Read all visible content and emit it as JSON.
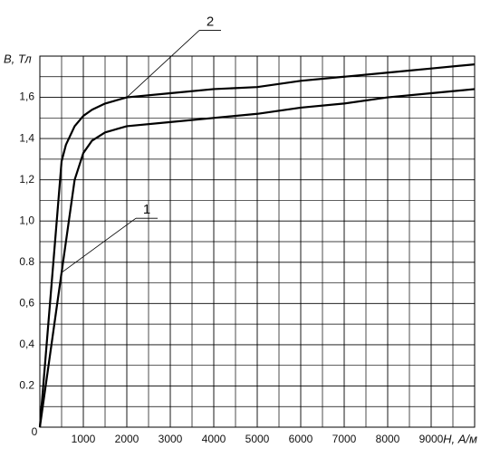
{
  "chart_data": {
    "type": "line",
    "x_label": "H, А/м",
    "y_label": "B, Тл",
    "x": [
      0,
      400,
      500,
      600,
      800,
      1000,
      1200,
      1500,
      2000,
      3000,
      4000,
      5000,
      6000,
      7000,
      8000,
      9000,
      10000
    ],
    "series": [
      {
        "name": "1",
        "color": "#000000",
        "values": [
          0,
          0.6,
          0.75,
          0.9,
          1.2,
          1.33,
          1.39,
          1.43,
          1.46,
          1.48,
          1.5,
          1.52,
          1.55,
          1.57,
          1.6,
          1.62,
          1.64
        ]
      },
      {
        "name": "2",
        "color": "#000000",
        "values": [
          0,
          1.03,
          1.29,
          1.37,
          1.46,
          1.51,
          1.54,
          1.57,
          1.6,
          1.62,
          1.64,
          1.65,
          1.68,
          1.7,
          1.72,
          1.74,
          1.76
        ]
      }
    ],
    "xlim": [
      0,
      10000
    ],
    "ylim": [
      0,
      1.8
    ],
    "xticks": [
      0,
      1000,
      2000,
      3000,
      4000,
      5000,
      6000,
      7000,
      8000,
      9000
    ],
    "yticks": [
      0.2,
      {
        "value": 0.4,
        "label": "0,4"
      },
      {
        "value": 0.6,
        "label": "0,6"
      },
      0.8,
      {
        "value": 1.0,
        "label": "1,0"
      },
      {
        "value": 1.2,
        "label": "1,2"
      },
      {
        "value": 1.4,
        "label": "1,4"
      },
      {
        "value": 1.6,
        "label": "1,6"
      }
    ],
    "x_minor_ticks": [
      500,
      1500,
      2500,
      3500,
      4500,
      5500,
      6500,
      7500,
      8500,
      9500
    ],
    "y_minor_ticks": [
      0.1,
      0.3,
      0.5,
      0.7,
      0.9,
      1.1,
      1.3,
      1.5,
      1.7
    ],
    "grid": true
  }
}
